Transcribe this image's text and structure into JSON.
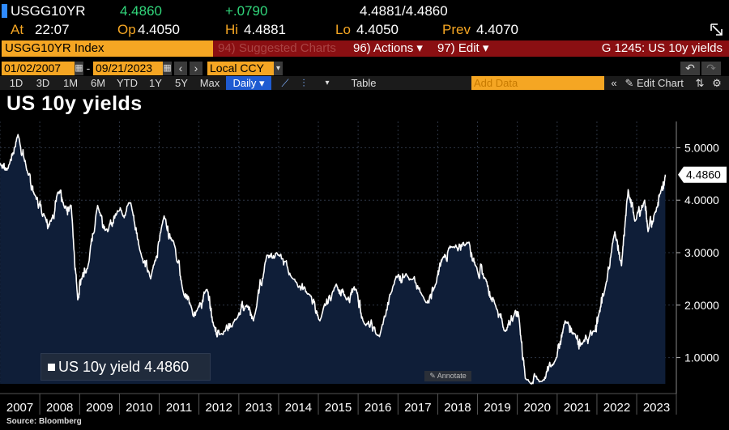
{
  "quote": {
    "ticker": "USGG10YR",
    "last": "4.4860",
    "change": "+.0790",
    "bid_ask": "4.4881/4.4860",
    "at_label": "At",
    "at_time": "22:07",
    "open_label": "Op",
    "open_value": "4.4050",
    "high_label": "Hi",
    "high_value": "4.4881",
    "low_label": "Lo",
    "low_value": "4.4050",
    "prev_label": "Prev",
    "prev_value": "4.4070"
  },
  "command_bar": {
    "security": "USGG10YR Index",
    "suggested": "94) Suggested Charts",
    "actions": "96) Actions ▾",
    "edit": "97) Edit ▾",
    "function_title": "G 1245: US 10y yields"
  },
  "date_range": {
    "start": "01/02/2007",
    "end": "09/21/2023",
    "currency": "Local CCY"
  },
  "periods": [
    "1D",
    "3D",
    "1M",
    "6M",
    "YTD",
    "1Y",
    "5Y",
    "Max"
  ],
  "frequency": "Daily",
  "table_label": "Table",
  "add_data_placeholder": "Add Data",
  "edit_chart_label": "Edit Chart",
  "colors": {
    "accent_orange": "#f5a623",
    "command_red": "#8a0f12",
    "active_blue": "#1f5bd1",
    "area_fill": "#0f1e38",
    "line": "#ffffff"
  },
  "chart_data": {
    "type": "area",
    "title": "US 10y yields",
    "series": [
      {
        "name": "US 10y yield",
        "last_value": "4.4860",
        "points": [
          [
            "2007-01",
            4.7
          ],
          [
            "2007-03",
            4.6
          ],
          [
            "2007-06",
            5.25
          ],
          [
            "2007-09",
            4.5
          ],
          [
            "2007-11",
            4.1
          ],
          [
            "2008-02",
            3.7
          ],
          [
            "2008-04",
            3.6
          ],
          [
            "2008-06",
            4.15
          ],
          [
            "2008-08",
            3.85
          ],
          [
            "2008-10",
            3.9
          ],
          [
            "2008-12",
            2.1
          ],
          [
            "2009-01",
            2.5
          ],
          [
            "2009-03",
            2.7
          ],
          [
            "2009-06",
            3.9
          ],
          [
            "2009-09",
            3.4
          ],
          [
            "2009-12",
            3.8
          ],
          [
            "2010-04",
            3.95
          ],
          [
            "2010-07",
            3.0
          ],
          [
            "2010-10",
            2.5
          ],
          [
            "2011-02",
            3.7
          ],
          [
            "2011-05",
            3.2
          ],
          [
            "2011-08",
            2.2
          ],
          [
            "2011-10",
            2.0
          ],
          [
            "2011-12",
            1.9
          ],
          [
            "2012-03",
            2.3
          ],
          [
            "2012-05",
            1.6
          ],
          [
            "2012-07",
            1.45
          ],
          [
            "2012-12",
            1.75
          ],
          [
            "2013-03",
            2.0
          ],
          [
            "2013-05",
            1.7
          ],
          [
            "2013-09",
            2.95
          ],
          [
            "2013-12",
            3.0
          ],
          [
            "2014-05",
            2.5
          ],
          [
            "2014-10",
            2.2
          ],
          [
            "2015-01",
            1.7
          ],
          [
            "2015-06",
            2.4
          ],
          [
            "2015-09",
            2.1
          ],
          [
            "2015-12",
            2.3
          ],
          [
            "2016-02",
            1.7
          ],
          [
            "2016-07",
            1.4
          ],
          [
            "2016-12",
            2.55
          ],
          [
            "2017-03",
            2.6
          ],
          [
            "2017-09",
            2.05
          ],
          [
            "2017-12",
            2.4
          ],
          [
            "2018-02",
            2.9
          ],
          [
            "2018-05",
            3.1
          ],
          [
            "2018-10",
            3.2
          ],
          [
            "2018-12",
            2.75
          ],
          [
            "2019-03",
            2.5
          ],
          [
            "2019-06",
            2.0
          ],
          [
            "2019-09",
            1.5
          ],
          [
            "2019-12",
            1.9
          ],
          [
            "2020-01",
            1.8
          ],
          [
            "2020-03",
            0.6
          ],
          [
            "2020-08",
            0.55
          ],
          [
            "2020-12",
            0.95
          ],
          [
            "2021-03",
            1.7
          ],
          [
            "2021-06",
            1.45
          ],
          [
            "2021-08",
            1.25
          ],
          [
            "2021-12",
            1.5
          ],
          [
            "2022-01",
            1.8
          ],
          [
            "2022-03",
            2.3
          ],
          [
            "2022-06",
            3.4
          ],
          [
            "2022-08",
            2.75
          ],
          [
            "2022-10",
            4.2
          ],
          [
            "2022-12",
            3.6
          ],
          [
            "2023-03",
            4.0
          ],
          [
            "2023-04",
            3.4
          ],
          [
            "2023-06",
            3.75
          ],
          [
            "2023-08",
            4.2
          ],
          [
            "2023-09",
            4.486
          ]
        ]
      }
    ],
    "x_ticks": [
      "2007",
      "2008",
      "2009",
      "2010",
      "2011",
      "2012",
      "2013",
      "2014",
      "2015",
      "2016",
      "2017",
      "2018",
      "2019",
      "2020",
      "2021",
      "2022",
      "2023"
    ],
    "y_ticks": [
      "1.0000",
      "2.0000",
      "3.0000",
      "4.0000",
      "5.0000"
    ],
    "ylim": [
      0.5,
      5.5
    ],
    "xlim": [
      "2007-01-01",
      "2023-12-31"
    ],
    "current_value_label": "4.4860",
    "annotate_label": "Annotate"
  },
  "source": "Source: Bloomberg"
}
